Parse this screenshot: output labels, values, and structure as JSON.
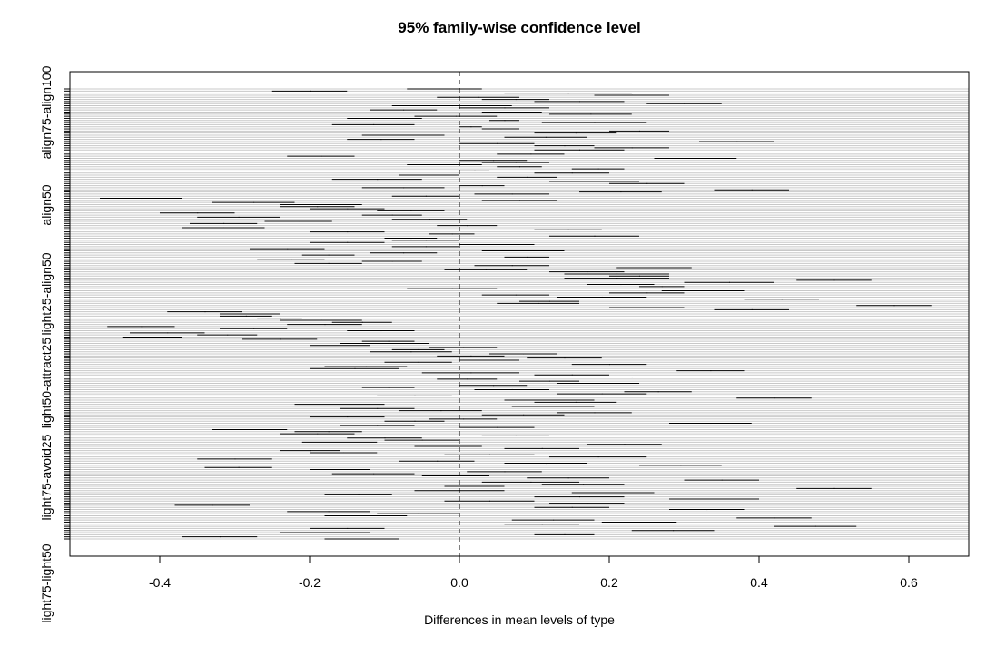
{
  "chart_data": {
    "type": "interval",
    "title": "95% family-wise confidence level",
    "xlabel": "Differences in mean levels of type",
    "ylabel": "",
    "xlim": [
      -0.52,
      0.68
    ],
    "x_ticks": [
      -0.4,
      -0.2,
      0.0,
      0.2,
      0.4,
      0.6
    ],
    "x_tick_labels": [
      "-0.4",
      "-0.2",
      "0.0",
      "0.2",
      "0.4",
      "0.6"
    ],
    "y_tick_labels": [
      "align75-align100",
      "align50",
      "light25-align50",
      "light50-attract25",
      "light75-avoid25",
      "light75-light50"
    ],
    "zero_line": 0.0,
    "grid": true,
    "intervals": [
      [
        -0.07,
        0.03
      ],
      [
        -0.25,
        -0.15
      ],
      [
        0.06,
        0.23
      ],
      [
        0.18,
        0.28
      ],
      [
        -0.03,
        0.08
      ],
      [
        0.03,
        0.12
      ],
      [
        0.1,
        0.22
      ],
      [
        0.25,
        0.35
      ],
      [
        -0.09,
        0.07
      ],
      [
        0.0,
        0.12
      ],
      [
        -0.12,
        -0.03
      ],
      [
        0.03,
        0.11
      ],
      [
        0.12,
        0.23
      ],
      [
        -0.06,
        0.05
      ],
      [
        -0.15,
        -0.05
      ],
      [
        0.04,
        0.08
      ],
      [
        0.11,
        0.25
      ],
      [
        -0.17,
        -0.06
      ],
      [
        0.0,
        0.03
      ],
      [
        0.03,
        0.08
      ],
      [
        0.2,
        0.28
      ],
      [
        0.1,
        0.21
      ],
      [
        -0.13,
        -0.02
      ],
      [
        0.06,
        0.17
      ],
      [
        -0.15,
        -0.06
      ],
      [
        0.32,
        0.42
      ],
      [
        0.0,
        0.1
      ],
      [
        0.1,
        0.18
      ],
      [
        0.18,
        0.28
      ],
      [
        0.1,
        0.22
      ],
      [
        0.0,
        0.1
      ],
      [
        0.05,
        0.14
      ],
      [
        -0.23,
        -0.14
      ],
      [
        0.26,
        0.37
      ],
      [
        0.0,
        0.09
      ],
      [
        0.03,
        0.12
      ],
      [
        -0.07,
        0.03
      ],
      [
        0.05,
        0.11
      ],
      [
        0.15,
        0.22
      ],
      [
        0.0,
        0.04
      ],
      [
        0.1,
        0.2
      ],
      [
        -0.08,
        0.0
      ],
      [
        0.05,
        0.13
      ],
      [
        -0.17,
        -0.05
      ],
      [
        0.12,
        0.24
      ],
      [
        0.2,
        0.3
      ],
      [
        0.0,
        0.06
      ],
      [
        -0.13,
        -0.02
      ],
      [
        0.34,
        0.44
      ],
      [
        0.16,
        0.27
      ],
      [
        0.02,
        0.12
      ],
      [
        -0.09,
        0.0
      ],
      [
        -0.48,
        -0.37
      ],
      [
        0.03,
        0.13
      ],
      [
        -0.33,
        -0.22
      ],
      [
        -0.24,
        -0.13
      ],
      [
        -0.24,
        -0.14
      ],
      [
        -0.2,
        -0.1
      ],
      [
        -0.11,
        -0.02
      ],
      [
        -0.4,
        -0.3
      ],
      [
        -0.13,
        -0.05
      ],
      [
        -0.35,
        -0.24
      ],
      [
        -0.09,
        0.01
      ],
      [
        -0.26,
        -0.17
      ],
      [
        -0.36,
        -0.27
      ],
      [
        -0.03,
        0.05
      ],
      [
        -0.37,
        -0.26
      ],
      [
        0.1,
        0.19
      ],
      [
        -0.2,
        -0.1
      ],
      [
        -0.04,
        0.02
      ],
      [
        0.12,
        0.24
      ],
      [
        -0.1,
        -0.03
      ],
      [
        -0.09,
        0.0
      ],
      [
        -0.2,
        -0.1
      ],
      [
        0.0,
        0.1
      ],
      [
        -0.09,
        0.0
      ],
      [
        -0.28,
        -0.18
      ],
      [
        0.03,
        0.14
      ],
      [
        -0.12,
        -0.03
      ],
      [
        -0.21,
        -0.14
      ],
      [
        0.06,
        0.12
      ],
      [
        -0.27,
        -0.18
      ],
      [
        -0.13,
        -0.05
      ],
      [
        -0.22,
        -0.13
      ],
      [
        0.02,
        0.12
      ],
      [
        0.21,
        0.31
      ],
      [
        -0.02,
        0.09
      ],
      [
        0.12,
        0.22
      ],
      [
        0.14,
        0.28
      ],
      [
        0.2,
        0.28
      ],
      [
        0.14,
        0.28
      ],
      [
        0.45,
        0.55
      ],
      [
        0.3,
        0.42
      ],
      [
        0.17,
        0.26
      ],
      [
        0.24,
        0.3
      ],
      [
        -0.07,
        0.05
      ],
      [
        0.27,
        0.38
      ],
      [
        0.2,
        0.3
      ],
      [
        0.03,
        0.12
      ],
      [
        0.13,
        0.25
      ],
      [
        0.38,
        0.48
      ],
      [
        0.08,
        0.16
      ],
      [
        0.05,
        0.16
      ],
      [
        0.53,
        0.63
      ],
      [
        0.2,
        0.3
      ],
      [
        0.34,
        0.44
      ],
      [
        -0.39,
        -0.29
      ],
      [
        -0.32,
        -0.24
      ],
      [
        -0.32,
        -0.25
      ],
      [
        -0.27,
        -0.21
      ],
      [
        -0.24,
        -0.13
      ],
      [
        -0.17,
        -0.09
      ],
      [
        -0.23,
        -0.13
      ],
      [
        -0.47,
        -0.38
      ],
      [
        -0.32,
        -0.23
      ],
      [
        -0.15,
        -0.06
      ],
      [
        -0.44,
        -0.34
      ],
      [
        -0.35,
        -0.27
      ],
      [
        -0.45,
        -0.37
      ],
      [
        -0.29,
        -0.19
      ],
      [
        -0.13,
        -0.06
      ],
      [
        -0.16,
        -0.04
      ],
      [
        -0.2,
        -0.12
      ],
      [
        -0.04,
        0.05
      ],
      [
        -0.09,
        -0.02
      ],
      [
        -0.12,
        -0.01
      ],
      [
        0.04,
        0.13
      ],
      [
        -0.03,
        0.06
      ],
      [
        0.09,
        0.19
      ],
      [
        0.0,
        0.08
      ],
      [
        -0.1,
        -0.01
      ],
      [
        0.15,
        0.25
      ],
      [
        -0.18,
        -0.07
      ],
      [
        -0.2,
        -0.08
      ],
      [
        0.29,
        0.38
      ],
      [
        -0.05,
        0.08
      ],
      [
        0.1,
        0.2
      ],
      [
        0.18,
        0.28
      ],
      [
        -0.03,
        0.05
      ],
      [
        0.08,
        0.16
      ],
      [
        0.13,
        0.24
      ],
      [
        0.0,
        0.09
      ],
      [
        -0.13,
        -0.06
      ],
      [
        0.02,
        0.12
      ],
      [
        0.22,
        0.31
      ],
      [
        0.13,
        0.25
      ],
      [
        -0.11,
        -0.01
      ],
      [
        0.37,
        0.47
      ],
      [
        0.06,
        0.18
      ],
      [
        0.1,
        0.21
      ],
      [
        -0.22,
        -0.1
      ],
      [
        0.07,
        0.18
      ],
      [
        -0.16,
        -0.06
      ],
      [
        -0.08,
        0.03
      ],
      [
        0.13,
        0.23
      ],
      [
        0.03,
        0.14
      ],
      [
        -0.2,
        -0.1
      ],
      [
        -0.04,
        0.05
      ],
      [
        -0.1,
        -0.02
      ],
      [
        0.28,
        0.39
      ],
      [
        -0.16,
        -0.06
      ],
      [
        0.0,
        0.1
      ],
      [
        -0.33,
        -0.23
      ],
      [
        -0.22,
        -0.13
      ],
      [
        -0.24,
        -0.14
      ],
      [
        0.03,
        0.12
      ],
      [
        -0.15,
        -0.05
      ],
      [
        -0.1,
        0.0
      ],
      [
        -0.21,
        -0.11
      ],
      [
        0.17,
        0.27
      ],
      [
        -0.06,
        0.03
      ],
      [
        0.06,
        0.16
      ],
      [
        -0.24,
        -0.16
      ],
      [
        -0.2,
        -0.11
      ],
      [
        -0.02,
        0.1
      ],
      [
        0.12,
        0.25
      ],
      [
        -0.35,
        -0.25
      ],
      [
        -0.08,
        0.02
      ],
      [
        0.06,
        0.17
      ],
      [
        0.24,
        0.35
      ],
      [
        -0.34,
        -0.25
      ],
      [
        -0.2,
        -0.12
      ],
      [
        0.01,
        0.11
      ],
      [
        -0.17,
        -0.06
      ],
      [
        -0.05,
        0.04
      ],
      [
        0.09,
        0.2
      ],
      [
        0.3,
        0.4
      ],
      [
        0.03,
        0.16
      ],
      [
        0.11,
        0.22
      ],
      [
        -0.02,
        0.06
      ],
      [
        0.45,
        0.55
      ],
      [
        -0.06,
        0.06
      ],
      [
        0.15,
        0.26
      ],
      [
        -0.18,
        -0.09
      ],
      [
        0.1,
        0.22
      ],
      [
        0.28,
        0.4
      ],
      [
        -0.02,
        0.1
      ],
      [
        0.12,
        0.22
      ],
      [
        -0.38,
        -0.28
      ],
      [
        0.1,
        0.2
      ],
      [
        0.28,
        0.38
      ],
      [
        -0.23,
        -0.12
      ],
      [
        -0.11,
        0.0
      ],
      [
        -0.18,
        -0.07
      ],
      [
        0.37,
        0.47
      ],
      [
        0.07,
        0.18
      ],
      [
        0.19,
        0.29
      ],
      [
        0.06,
        0.16
      ],
      [
        0.42,
        0.53
      ],
      [
        -0.2,
        -0.1
      ],
      [
        0.23,
        0.34
      ],
      [
        -0.24,
        -0.12
      ],
      [
        0.1,
        0.18
      ],
      [
        -0.37,
        -0.27
      ],
      [
        -0.18,
        -0.08
      ]
    ]
  }
}
